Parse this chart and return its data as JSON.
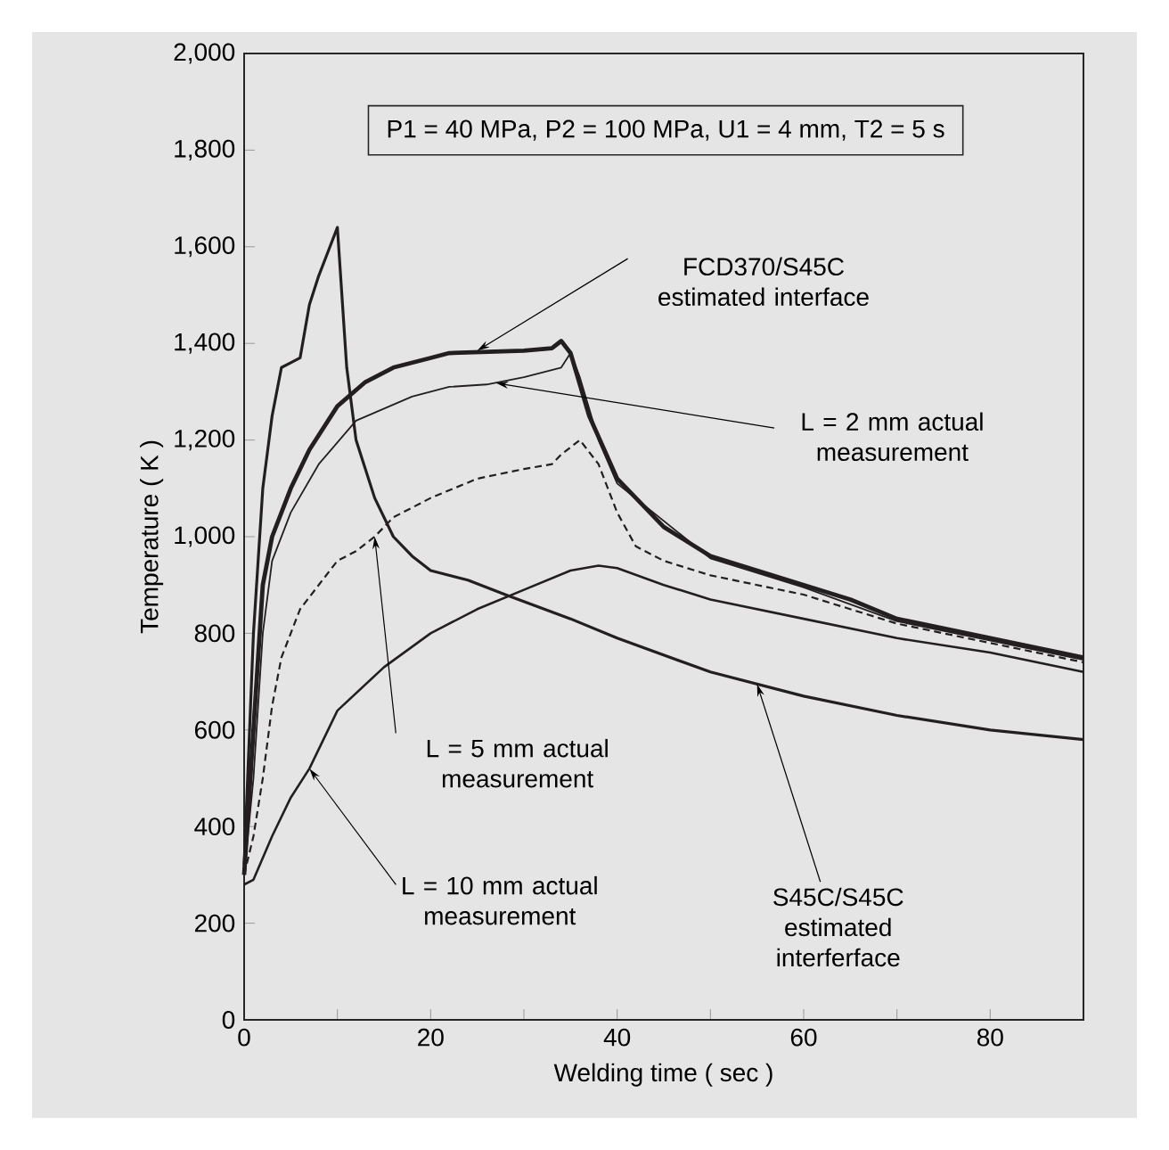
{
  "chart_data": {
    "type": "line",
    "xlabel": "Welding time ( sec )",
    "ylabel": "Temperature ( K )",
    "xlim": [
      0,
      90
    ],
    "ylim": [
      0,
      2000
    ],
    "xticks": [
      0,
      {
        "value": 10,
        "label": null
      },
      20,
      {
        "value": 30,
        "label": null
      },
      40,
      {
        "value": 50,
        "label": null
      },
      60,
      {
        "value": 70,
        "label": null
      },
      80,
      {
        "value": 90,
        "label": null
      }
    ],
    "yticks": [
      0,
      200,
      400,
      600,
      800,
      {
        "value": 1000,
        "label": "1,000"
      },
      {
        "value": 1200,
        "label": "1,200"
      },
      {
        "value": 1400,
        "label": "1,400"
      },
      {
        "value": 1600,
        "label": "1,600"
      },
      {
        "value": 1800,
        "label": "1,800"
      },
      {
        "value": 2000,
        "label": "2,000"
      }
    ],
    "marker": "none",
    "series": [
      {
        "color": "#231f20",
        "line_style": "solid",
        "x": [
          0,
          1,
          2,
          3,
          4,
          5,
          6,
          7,
          8,
          9,
          10,
          11,
          12,
          14,
          16,
          18,
          20,
          24,
          28,
          35,
          40,
          50,
          60,
          70,
          80,
          90
        ],
        "values": [
          320,
          800,
          1100,
          1250,
          1350,
          1360,
          1370,
          1480,
          1540,
          1590,
          1640,
          1350,
          1200,
          1080,
          1000,
          960,
          930,
          910,
          880,
          830,
          790,
          720,
          670,
          630,
          600,
          580
        ]
      },
      {
        "color": "#231f20",
        "line_style": "solid",
        "x": [
          0,
          1,
          2,
          3,
          5,
          7,
          10,
          13,
          16,
          20,
          22,
          30,
          33,
          34,
          35,
          37,
          40,
          45,
          50,
          55,
          60,
          65,
          70,
          80,
          90
        ],
        "values": [
          300,
          600,
          900,
          1000,
          1100,
          1180,
          1270,
          1320,
          1350,
          1370,
          1380,
          1385,
          1390,
          1405,
          1380,
          1250,
          1120,
          1020,
          960,
          930,
          900,
          870,
          830,
          790,
          750
        ]
      },
      {
        "color": "#231f20",
        "line_style": "solid",
        "x": [
          0,
          1,
          2,
          3,
          5,
          8,
          12,
          18,
          22,
          26,
          30,
          34,
          35,
          36,
          38,
          40,
          50,
          60,
          70,
          90
        ],
        "values": [
          300,
          500,
          800,
          950,
          1050,
          1150,
          1240,
          1290,
          1310,
          1315,
          1330,
          1350,
          1380,
          1330,
          1200,
          1110,
          955,
          895,
          825,
          745
        ]
      },
      {
        "color": "#231f20",
        "line_style": "dashed",
        "x": [
          0,
          1,
          2,
          3,
          4,
          6,
          8,
          10,
          12,
          14,
          16,
          20,
          25,
          30,
          33,
          34,
          36,
          38,
          40,
          42,
          45,
          50,
          60,
          70,
          80,
          90
        ],
        "values": [
          300,
          380,
          500,
          650,
          750,
          850,
          900,
          950,
          970,
          1000,
          1040,
          1080,
          1120,
          1140,
          1150,
          1170,
          1200,
          1150,
          1050,
          980,
          950,
          920,
          880,
          820,
          780,
          740
        ]
      },
      {
        "color": "#231f20",
        "line_style": "solid",
        "x": [
          0,
          1,
          3,
          5,
          7,
          10,
          15,
          20,
          25,
          30,
          35,
          38,
          40,
          45,
          50,
          60,
          70,
          80,
          90
        ],
        "values": [
          280,
          290,
          380,
          460,
          520,
          640,
          730,
          800,
          850,
          890,
          930,
          940,
          935,
          900,
          870,
          830,
          790,
          760,
          720
        ]
      }
    ],
    "annotations": [
      "P1 = 40 MPa, P2 = 100 MPa, U1 = 4 mm, T2 = 5 s",
      {
        "text": "FCD370/S45C estimated interface",
        "x": 25,
        "y": 1385
      },
      {
        "text": "L = 2 mm actual measurement",
        "x": 27,
        "y": 1318
      },
      {
        "text": "L = 5 mm actual measurement",
        "x": 14,
        "y": 1000
      },
      {
        "text": "L = 10 mm actual measurement",
        "x": 7,
        "y": 520
      },
      {
        "text": "S45C/S45C estimated interferface",
        "x": 55,
        "y": 695
      }
    ]
  }
}
